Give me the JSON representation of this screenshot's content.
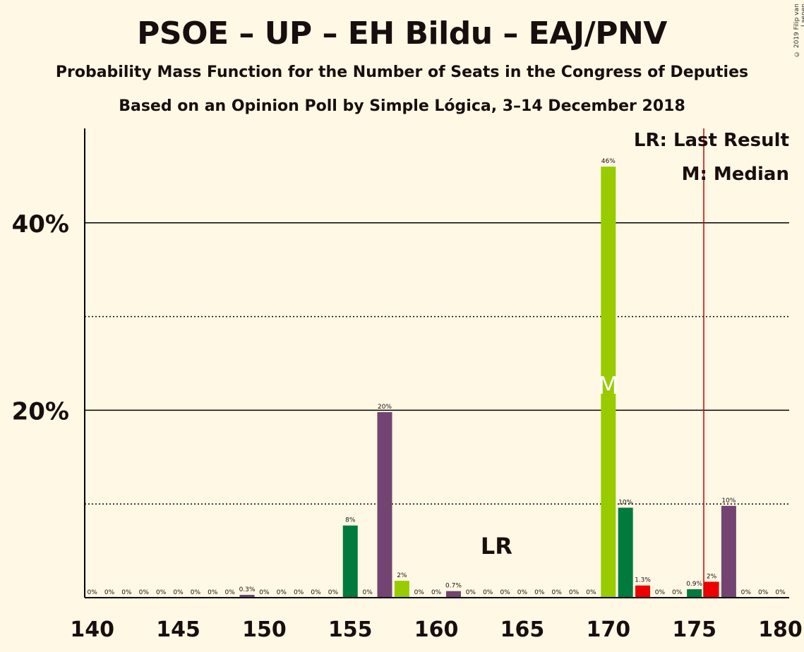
{
  "title": "PSOE – UP – EH Bildu – EAJ/PNV",
  "subtitle": "Probability Mass Function for the Number of Seats in the Congress of Deputies",
  "subtitle2": "Based on an Opinion Poll by Simple Lógica, 3–14 December 2018",
  "copyright": "© 2019 Filip van Laenen",
  "legend": {
    "last_result": "LR: Last Result",
    "median": "M: Median"
  },
  "markers": {
    "lr_label": "LR",
    "median_label": "M"
  },
  "colors": {
    "background": "#fff8e4",
    "purple": "#734472",
    "green": "#007a3d",
    "lime": "#99cc00",
    "red": "#ee0000",
    "last_result_line": "#cc0000"
  },
  "chart_data": {
    "type": "bar",
    "xlabel": "",
    "ylabel": "",
    "ylim": [
      0,
      50
    ],
    "yticks": [
      0,
      10,
      20,
      30,
      40
    ],
    "ytick_labels": [
      "",
      "",
      "20%",
      "",
      "40%"
    ],
    "xticks": [
      140,
      145,
      150,
      155,
      160,
      165,
      170,
      175,
      180
    ],
    "xtick_labels": [
      "140",
      "145",
      "150",
      "155",
      "160",
      "165",
      "170",
      "175",
      "180"
    ],
    "grid_solid": [
      20,
      40
    ],
    "grid_dotted": [
      10,
      30
    ],
    "last_result": 176,
    "median": 170,
    "bars": [
      {
        "x": 140,
        "value": 0,
        "label": "0%",
        "color": "purple"
      },
      {
        "x": 141,
        "value": 0,
        "label": "0%",
        "color": "purple"
      },
      {
        "x": 142,
        "value": 0,
        "label": "0%",
        "color": "purple"
      },
      {
        "x": 143,
        "value": 0,
        "label": "0%",
        "color": "purple"
      },
      {
        "x": 144,
        "value": 0,
        "label": "0%",
        "color": "purple"
      },
      {
        "x": 145,
        "value": 0,
        "label": "0%",
        "color": "purple"
      },
      {
        "x": 146,
        "value": 0,
        "label": "0%",
        "color": "purple"
      },
      {
        "x": 147,
        "value": 0,
        "label": "0%",
        "color": "purple"
      },
      {
        "x": 148,
        "value": 0,
        "label": "0%",
        "color": "purple"
      },
      {
        "x": 149,
        "value": 0.3,
        "label": "0.3%",
        "color": "purple"
      },
      {
        "x": 150,
        "value": 0,
        "label": "0%",
        "color": "purple"
      },
      {
        "x": 151,
        "value": 0,
        "label": "0%",
        "color": "purple"
      },
      {
        "x": 152,
        "value": 0,
        "label": "0%",
        "color": "purple"
      },
      {
        "x": 153,
        "value": 0,
        "label": "0%",
        "color": "purple"
      },
      {
        "x": 154,
        "value": 0,
        "label": "0%",
        "color": "purple"
      },
      {
        "x": 155,
        "value": 7.7,
        "label": "8%",
        "color": "green"
      },
      {
        "x": 156,
        "value": 0,
        "label": "0%",
        "color": "purple"
      },
      {
        "x": 157,
        "value": 19.8,
        "label": "20%",
        "color": "purple"
      },
      {
        "x": 158,
        "value": 1.8,
        "label": "2%",
        "color": "lime"
      },
      {
        "x": 159,
        "value": 0,
        "label": "0%",
        "color": "purple"
      },
      {
        "x": 160,
        "value": 0,
        "label": "0%",
        "color": "purple"
      },
      {
        "x": 161,
        "value": 0.7,
        "label": "0.7%",
        "color": "purple"
      },
      {
        "x": 162,
        "value": 0,
        "label": "0%",
        "color": "purple"
      },
      {
        "x": 163,
        "value": 0,
        "label": "0%",
        "color": "purple"
      },
      {
        "x": 164,
        "value": 0,
        "label": "0%",
        "color": "purple"
      },
      {
        "x": 165,
        "value": 0,
        "label": "0%",
        "color": "purple"
      },
      {
        "x": 166,
        "value": 0,
        "label": "0%",
        "color": "purple"
      },
      {
        "x": 167,
        "value": 0,
        "label": "0%",
        "color": "purple"
      },
      {
        "x": 168,
        "value": 0,
        "label": "0%",
        "color": "purple"
      },
      {
        "x": 169,
        "value": 0,
        "label": "0%",
        "color": "purple"
      },
      {
        "x": 170,
        "value": 46,
        "label": "46%",
        "color": "lime"
      },
      {
        "x": 171,
        "value": 9.6,
        "label": "10%",
        "color": "green"
      },
      {
        "x": 172,
        "value": 1.3,
        "label": "1.3%",
        "color": "red"
      },
      {
        "x": 173,
        "value": 0,
        "label": "0%",
        "color": "purple"
      },
      {
        "x": 174,
        "value": 0,
        "label": "0%",
        "color": "purple"
      },
      {
        "x": 175,
        "value": 0.9,
        "label": "0.9%",
        "color": "green"
      },
      {
        "x": 176,
        "value": 1.7,
        "label": "2%",
        "color": "red"
      },
      {
        "x": 177,
        "value": 9.8,
        "label": "10%",
        "color": "purple"
      },
      {
        "x": 178,
        "value": 0,
        "label": "0%",
        "color": "purple"
      },
      {
        "x": 179,
        "value": 0,
        "label": "0%",
        "color": "purple"
      },
      {
        "x": 180,
        "value": 0,
        "label": "0%",
        "color": "purple"
      }
    ]
  }
}
